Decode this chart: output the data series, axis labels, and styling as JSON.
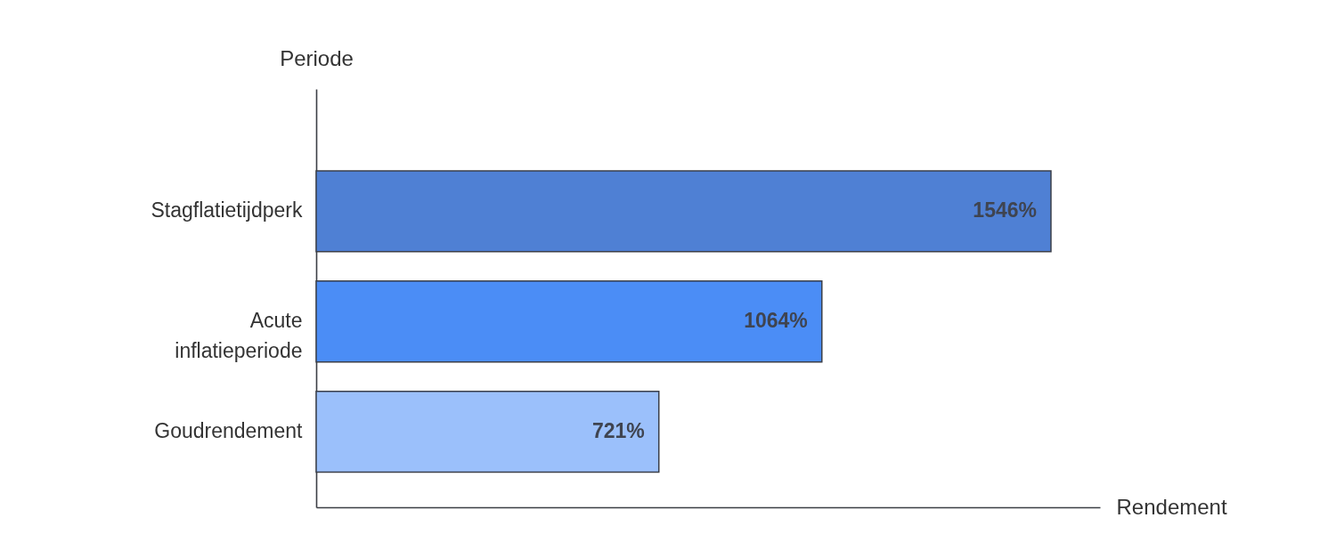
{
  "chart_data": {
    "type": "bar",
    "orientation": "horizontal",
    "xlabel": "Rendement",
    "ylabel": "Periode",
    "categories": [
      "Stagflatietijdperk",
      "Acute inflatieperiode",
      "Goudrendement"
    ],
    "values": [
      1546,
      1064,
      721
    ],
    "colors": [
      "#4f80d4",
      "#4b8df6",
      "#9bc0fb"
    ],
    "value_labels": [
      "1546%",
      "1064%",
      "721%"
    ]
  }
}
